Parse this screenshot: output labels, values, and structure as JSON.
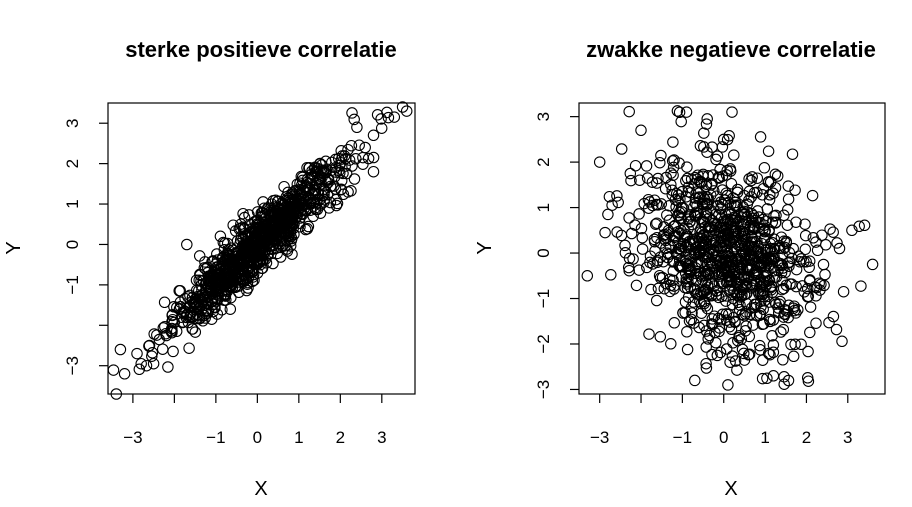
{
  "chart_data": [
    {
      "type": "scatter",
      "title": "sterke positieve correlatie",
      "xlabel": "X",
      "ylabel": "Y",
      "xlim": [
        -3.6,
        3.8
      ],
      "ylim": [
        -3.7,
        3.5
      ],
      "xticks": [
        -3,
        -2,
        -1,
        0,
        1,
        2,
        3
      ],
      "xtick_labels": [
        "−3",
        "",
        "−1",
        "0",
        "1",
        "2",
        "3"
      ],
      "yticks": [
        -3,
        -2,
        -1,
        0,
        1,
        2,
        3
      ],
      "ytick_labels": [
        "−3",
        "",
        "−1",
        "0",
        "1",
        "2",
        "3"
      ],
      "n_points": 1000,
      "correlation": 0.93,
      "seed": 11,
      "extra_points": [
        [
          -3.4,
          -3.7
        ],
        [
          -3.3,
          -2.6
        ],
        [
          -3.2,
          -3.2
        ],
        [
          -2.9,
          -2.7
        ],
        [
          -2.8,
          -2.95
        ],
        [
          -2.6,
          -2.5
        ],
        [
          -2.5,
          -2.95
        ],
        [
          2.4,
          2.9
        ],
        [
          2.8,
          2.7
        ],
        [
          2.8,
          1.8
        ],
        [
          2.6,
          2.4
        ],
        [
          3.5,
          3.4
        ],
        [
          3.6,
          3.3
        ],
        [
          3.3,
          3.15
        ],
        [
          -1.7,
          0.0
        ]
      ],
      "grid": false,
      "legend": "none"
    },
    {
      "type": "scatter",
      "title": "zwakke negatieve correlatie",
      "xlabel": "X",
      "ylabel": "Y",
      "xlim": [
        -3.5,
        3.9
      ],
      "ylim": [
        -3.1,
        3.3
      ],
      "xticks": [
        -3,
        -2,
        -1,
        0,
        1,
        2,
        3
      ],
      "xtick_labels": [
        "−3",
        "",
        "−1",
        "0",
        "1",
        "2",
        "3"
      ],
      "yticks": [
        -3,
        -2,
        -1,
        0,
        1,
        2,
        3
      ],
      "ytick_labels": [
        "−3",
        "−2",
        "−1",
        "0",
        "1",
        "2",
        "3"
      ],
      "n_points": 1000,
      "correlation": -0.25,
      "seed": 23,
      "extra_points": [
        [
          -3.3,
          -0.5
        ],
        [
          3.6,
          -0.25
        ],
        [
          -0.9,
          3.1
        ],
        [
          0.2,
          3.1
        ],
        [
          -0.4,
          2.95
        ],
        [
          0.0,
          2.5
        ],
        [
          -2.0,
          2.7
        ],
        [
          -3.0,
          2.0
        ],
        [
          0.1,
          -2.9
        ],
        [
          -0.7,
          -2.8
        ],
        [
          1.2,
          -2.7
        ],
        [
          3.1,
          0.5
        ],
        [
          2.8,
          0.1
        ],
        [
          2.9,
          -0.85
        ],
        [
          -2.8,
          0.85
        ]
      ],
      "grid": false,
      "legend": "none"
    }
  ]
}
